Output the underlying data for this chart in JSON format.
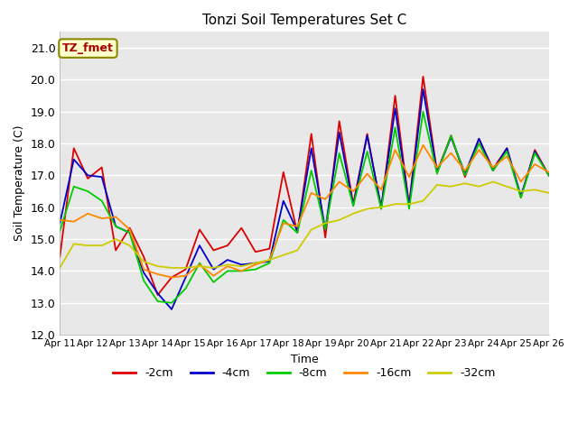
{
  "title": "Tonzi Soil Temperatures Set C",
  "xlabel": "Time",
  "ylabel": "Soil Temperature (C)",
  "ylim": [
    12.0,
    21.5
  ],
  "yticks": [
    12.0,
    13.0,
    14.0,
    15.0,
    16.0,
    17.0,
    18.0,
    19.0,
    20.0,
    21.0
  ],
  "annotation": "TZ_fmet",
  "legend_labels": [
    "-2cm",
    "-4cm",
    "-8cm",
    "-16cm",
    "-32cm"
  ],
  "colors": [
    "#dd0000",
    "#0000cc",
    "#00cc00",
    "#ff8800",
    "#cccc00"
  ],
  "x_tick_labels": [
    "Apr 11",
    "Apr 12",
    "Apr 13",
    "Apr 14",
    "Apr 15",
    "Apr 16",
    "Apr 17",
    "Apr 18",
    "Apr 19",
    "Apr 20",
    "Apr 21",
    "Apr 22",
    "Apr 23",
    "Apr 24",
    "Apr 25",
    "Apr 26"
  ],
  "data_2cm": [
    14.45,
    17.85,
    16.9,
    17.25,
    14.65,
    15.35,
    14.45,
    13.25,
    13.8,
    14.05,
    15.3,
    14.65,
    14.8,
    15.35,
    14.6,
    14.7,
    17.1,
    15.2,
    18.3,
    15.05,
    18.7,
    16.1,
    18.3,
    15.95,
    19.5,
    16.05,
    20.1,
    17.1,
    18.25,
    16.95,
    18.15,
    17.2,
    17.85,
    16.3,
    17.8,
    17.0
  ],
  "data_4cm": [
    15.5,
    17.5,
    17.0,
    16.95,
    15.4,
    15.2,
    13.95,
    13.3,
    12.8,
    13.8,
    14.8,
    14.05,
    14.35,
    14.2,
    14.25,
    14.3,
    16.2,
    15.25,
    17.85,
    15.3,
    18.35,
    16.05,
    18.25,
    16.0,
    19.1,
    16.05,
    19.7,
    17.1,
    18.2,
    17.05,
    18.15,
    17.15,
    17.85,
    16.35,
    17.75,
    17.0
  ],
  "data_8cm": [
    15.25,
    16.65,
    16.5,
    16.2,
    15.4,
    15.2,
    13.7,
    13.05,
    13.0,
    13.45,
    14.25,
    13.65,
    14.0,
    14.0,
    14.05,
    14.25,
    15.6,
    15.2,
    17.15,
    15.3,
    17.7,
    16.05,
    17.75,
    15.95,
    18.5,
    15.95,
    19.0,
    17.05,
    18.25,
    17.0,
    18.0,
    17.15,
    17.75,
    16.3,
    17.7,
    17.0
  ],
  "data_16cm": [
    15.6,
    15.55,
    15.8,
    15.65,
    15.7,
    15.3,
    14.05,
    13.9,
    13.8,
    13.85,
    14.2,
    13.85,
    14.15,
    14.0,
    14.2,
    14.35,
    15.5,
    15.4,
    16.45,
    16.25,
    16.8,
    16.5,
    17.05,
    16.55,
    17.8,
    16.95,
    17.95,
    17.25,
    17.7,
    17.15,
    17.8,
    17.25,
    17.6,
    16.8,
    17.35,
    17.1
  ],
  "data_32cm": [
    14.1,
    14.85,
    14.8,
    14.8,
    15.0,
    14.8,
    14.3,
    14.15,
    14.1,
    14.1,
    14.15,
    14.1,
    14.2,
    14.15,
    14.25,
    14.35,
    14.5,
    14.65,
    15.3,
    15.5,
    15.6,
    15.8,
    15.95,
    16.0,
    16.1,
    16.1,
    16.2,
    16.7,
    16.65,
    16.75,
    16.65,
    16.8,
    16.65,
    16.5,
    16.55,
    16.45
  ],
  "fig_bg": "#ffffff",
  "plot_bg": "#e8e8e8"
}
